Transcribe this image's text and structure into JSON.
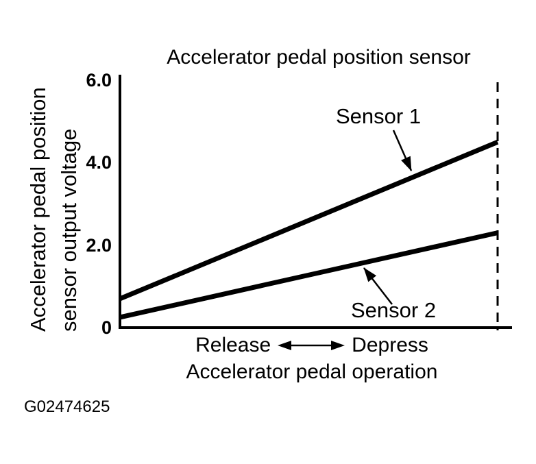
{
  "figure_id": "G02474625",
  "colors": {
    "ink": "#000000",
    "background": "#ffffff"
  },
  "chart_data": {
    "type": "line",
    "title": "Accelerator pedal position sensor",
    "ylabel": "Accelerator pedal position sensor output voltage",
    "ylabel_lines": [
      "Accelerator pedal position",
      "sensor output voltage"
    ],
    "xlabel": "Accelerator pedal operation",
    "x_direction_labels": {
      "left": "Release",
      "right": "Depress"
    },
    "x_axis_type": "qualitative pedal travel from released to fully depressed",
    "ylim": [
      0,
      6.0
    ],
    "yticks": [
      {
        "value": 0,
        "label": "0"
      },
      {
        "value": 2,
        "label": "2.0"
      },
      {
        "value": 4,
        "label": "4.0"
      },
      {
        "value": 6,
        "label": "6.0"
      }
    ],
    "grid": false,
    "legend_position": "inline arrow annotations",
    "series": [
      {
        "name": "Sensor 1",
        "voltage_at_release": 0.7,
        "voltage_at_full_depress": 4.5
      },
      {
        "name": "Sensor 2",
        "voltage_at_release": 0.25,
        "voltage_at_full_depress": 2.3
      }
    ],
    "full_depress_marker": "dashed vertical line at full pedal depression"
  }
}
